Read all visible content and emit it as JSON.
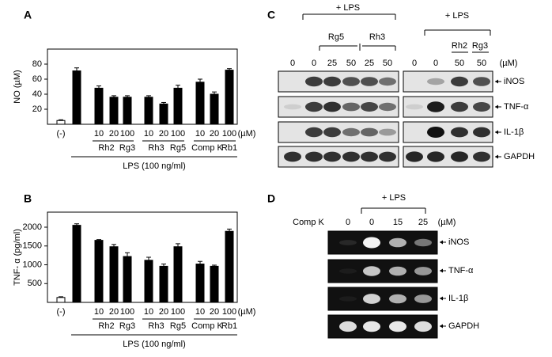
{
  "chart_data": [
    {
      "type": "bar",
      "panel_label": "A",
      "ylabel": "NO (µM)",
      "categories": [
        "(-)",
        null,
        "10",
        "20",
        "100",
        "10",
        "20",
        "100",
        "10",
        "20",
        "100"
      ],
      "unit_label": "(µM)",
      "group_labels": [
        "Rh2",
        "Rg3",
        "Rh3",
        "Rg5",
        "Comp K",
        "Rb1"
      ],
      "xlabel": "LPS (100 ng/ml)",
      "values": [
        5,
        71,
        48,
        36,
        36,
        36,
        27,
        48,
        56,
        40,
        72
      ],
      "errors": [
        1,
        4,
        3,
        2,
        2,
        2,
        2,
        4,
        4,
        3,
        2
      ],
      "colors": [
        "#ffffff",
        "#000000",
        "#000000",
        "#000000",
        "#000000",
        "#000000",
        "#000000",
        "#000000",
        "#000000",
        "#000000",
        "#000000"
      ],
      "ylim": [
        0,
        100
      ],
      "yticks": [
        20,
        40,
        60,
        80
      ]
    },
    {
      "type": "bar",
      "panel_label": "B",
      "ylabel": "TNF- α (pg/ml)",
      "categories": [
        "(-)",
        null,
        "10",
        "20",
        "100",
        "10",
        "20",
        "100",
        "10",
        "20",
        "100"
      ],
      "unit_label": "(µM)",
      "group_labels": [
        "Rh2",
        "Rg3",
        "Rh3",
        "Rg5",
        "Comp K",
        "Rb1"
      ],
      "xlabel": "LPS (100 ng/ml)",
      "values": [
        130,
        2050,
        1650,
        1480,
        1220,
        1120,
        960,
        1480,
        1020,
        960,
        1890
      ],
      "errors": [
        20,
        40,
        20,
        60,
        100,
        80,
        60,
        80,
        70,
        30,
        60
      ],
      "colors": [
        "#ffffff",
        "#000000",
        "#000000",
        "#000000",
        "#000000",
        "#000000",
        "#000000",
        "#000000",
        "#000000",
        "#000000",
        "#000000"
      ],
      "ylim": [
        0,
        2400
      ],
      "yticks": [
        500,
        1000,
        1500,
        2000
      ]
    }
  ],
  "blot_c": {
    "panel_label": "C",
    "lps_labels": [
      "+ LPS",
      "+ LPS"
    ],
    "treatment_labels": [
      "Rg5",
      "Rh3",
      "Rh2",
      "Rg3"
    ],
    "lanes": [
      "0",
      "0",
      "25",
      "50",
      "25",
      "50",
      "0",
      "0",
      "50",
      "50"
    ],
    "unit_label": "(µM)",
    "bands": [
      "iNOS",
      "TNF-α",
      "IL-1β",
      "GAPDH"
    ]
  },
  "blot_d": {
    "panel_label": "D",
    "lps_label": "+ LPS",
    "treatment_label": "Comp K",
    "lanes": [
      "0",
      "0",
      "15",
      "25"
    ],
    "unit_label": "(µM)",
    "bands": [
      "iNOS",
      "TNF-α",
      "IL-1β",
      "GAPDH"
    ]
  }
}
